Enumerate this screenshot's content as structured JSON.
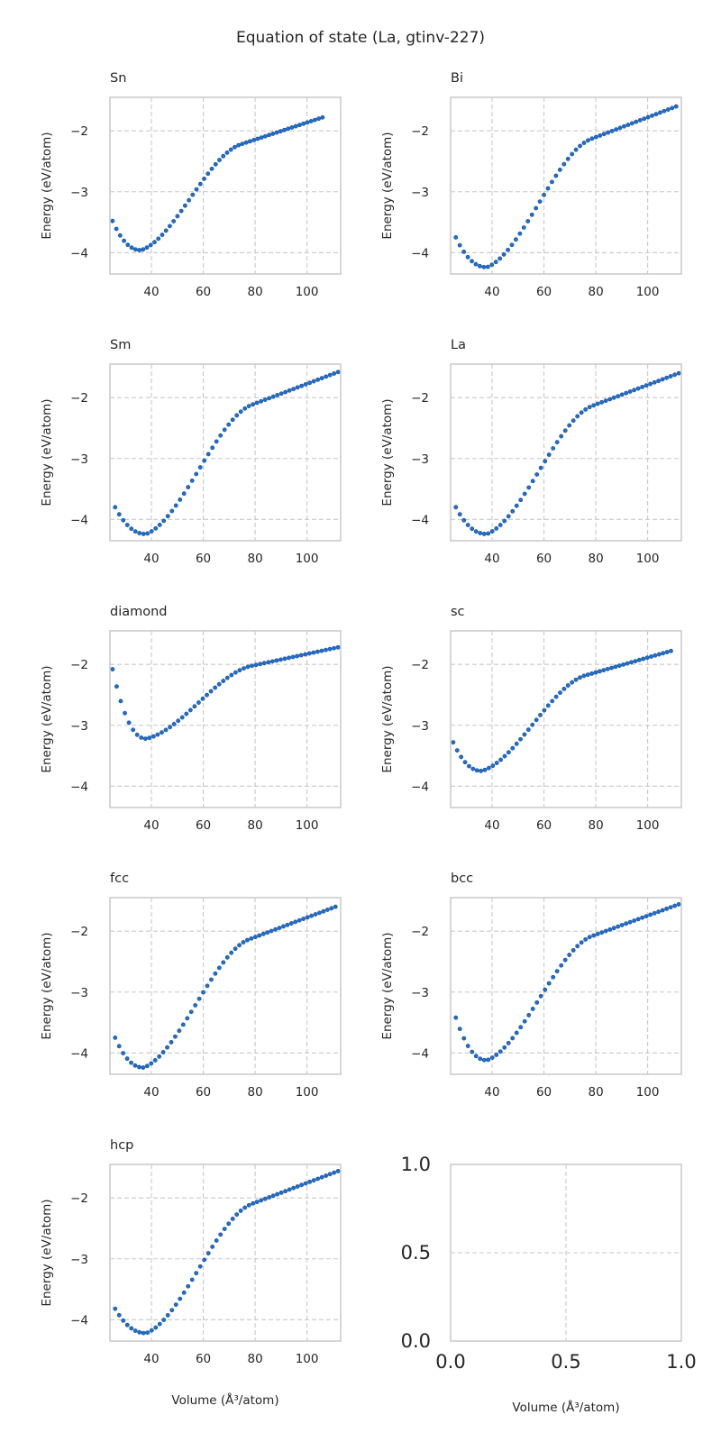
{
  "figure_title": "Equation of state (La, gtinv-227)",
  "ylabel": "Energy (eV/atom)",
  "xlabel": "Volume (Å³/atom)",
  "colors": {
    "marker": "#1f6fd1",
    "marker_edge": "#134a8e",
    "grid": "#c8c8c8",
    "spine": "#cccccc"
  },
  "chart_data": [
    {
      "type": "scatter",
      "title": "Sn",
      "xlabel": "",
      "ylabel": "Energy (eV/atom)",
      "xlim": [
        24,
        113
      ],
      "ylim": [
        -4.35,
        -1.45
      ],
      "xticks": [
        "40",
        "60",
        "80",
        "100"
      ],
      "yticks": [
        "−4",
        "−3",
        "−2"
      ],
      "grid": true,
      "curve": {
        "vmin": 25,
        "vmax": 106,
        "v0": 36,
        "emin": -3.96,
        "ehigh": -1.78,
        "estart": -3.48
      }
    },
    {
      "type": "scatter",
      "title": "Bi",
      "xlabel": "",
      "ylabel": "Energy (eV/atom)",
      "xlim": [
        24,
        113
      ],
      "ylim": [
        -4.35,
        -1.45
      ],
      "xticks": [
        "40",
        "60",
        "80",
        "100"
      ],
      "yticks": [
        "−4",
        "−3",
        "−2"
      ],
      "grid": true,
      "curve": {
        "vmin": 26,
        "vmax": 111,
        "v0": 38,
        "emin": -4.24,
        "ehigh": -1.6,
        "estart": -3.75
      }
    },
    {
      "type": "scatter",
      "title": "Sm",
      "xlabel": "",
      "ylabel": "Energy (eV/atom)",
      "xlim": [
        24,
        113
      ],
      "ylim": [
        -4.35,
        -1.45
      ],
      "xticks": [
        "40",
        "60",
        "80",
        "100"
      ],
      "yticks": [
        "−4",
        "−3",
        "−2"
      ],
      "grid": true,
      "curve": {
        "vmin": 26,
        "vmax": 112,
        "v0": 38,
        "emin": -4.24,
        "ehigh": -1.58,
        "estart": -3.8
      }
    },
    {
      "type": "scatter",
      "title": "La",
      "xlabel": "",
      "ylabel": "Energy (eV/atom)",
      "xlim": [
        24,
        113
      ],
      "ylim": [
        -4.35,
        -1.45
      ],
      "xticks": [
        "40",
        "60",
        "80",
        "100"
      ],
      "yticks": [
        "−4",
        "−3",
        "−2"
      ],
      "grid": true,
      "curve": {
        "vmin": 26,
        "vmax": 112,
        "v0": 38,
        "emin": -4.24,
        "ehigh": -1.6,
        "estart": -3.8
      }
    },
    {
      "type": "scatter",
      "title": "diamond",
      "xlabel": "",
      "ylabel": "Energy (eV/atom)",
      "xlim": [
        24,
        113
      ],
      "ylim": [
        -4.35,
        -1.45
      ],
      "xticks": [
        "40",
        "60",
        "80",
        "100"
      ],
      "yticks": [
        "−4",
        "−3",
        "−2"
      ],
      "grid": true,
      "curve": {
        "vmin": 25,
        "vmax": 112,
        "v0": 38,
        "emin": -3.22,
        "ehigh": -1.72,
        "estart": -2.08
      }
    },
    {
      "type": "scatter",
      "title": "sc",
      "xlabel": "",
      "ylabel": "Energy (eV/atom)",
      "xlim": [
        24,
        113
      ],
      "ylim": [
        -4.35,
        -1.45
      ],
      "xticks": [
        "40",
        "60",
        "80",
        "100"
      ],
      "yticks": [
        "−4",
        "−3",
        "−2"
      ],
      "grid": true,
      "curve": {
        "vmin": 25,
        "vmax": 109,
        "v0": 36,
        "emin": -3.75,
        "ehigh": -1.78,
        "estart": -3.28
      }
    },
    {
      "type": "scatter",
      "title": "fcc",
      "xlabel": "",
      "ylabel": "Energy (eV/atom)",
      "xlim": [
        24,
        113
      ],
      "ylim": [
        -4.35,
        -1.45
      ],
      "xticks": [
        "40",
        "60",
        "80",
        "100"
      ],
      "yticks": [
        "−4",
        "−3",
        "−2"
      ],
      "grid": true,
      "curve": {
        "vmin": 26,
        "vmax": 111,
        "v0": 37,
        "emin": -4.24,
        "ehigh": -1.6,
        "estart": -3.75
      }
    },
    {
      "type": "scatter",
      "title": "bcc",
      "xlabel": "",
      "ylabel": "Energy (eV/atom)",
      "xlim": [
        24,
        113
      ],
      "ylim": [
        -4.35,
        -1.45
      ],
      "xticks": [
        "40",
        "60",
        "80",
        "100"
      ],
      "yticks": [
        "−4",
        "−3",
        "−2"
      ],
      "grid": true,
      "curve": {
        "vmin": 26,
        "vmax": 112,
        "v0": 38,
        "emin": -4.12,
        "ehigh": -1.56,
        "estart": -3.42
      }
    },
    {
      "type": "scatter",
      "title": "hcp",
      "xlabel": "Volume (Å³/atom)",
      "ylabel": "Energy (eV/atom)",
      "xlim": [
        24,
        113
      ],
      "ylim": [
        -4.35,
        -1.45
      ],
      "xticks": [
        "40",
        "60",
        "80",
        "100"
      ],
      "yticks": [
        "−4",
        "−3",
        "−2"
      ],
      "grid": true,
      "curve": {
        "vmin": 26,
        "vmax": 112,
        "v0": 38,
        "emin": -4.22,
        "ehigh": -1.56,
        "estart": -3.82
      }
    },
    {
      "type": "scatter",
      "title": "",
      "xlabel": "Volume (Å³/atom)",
      "ylabel": "",
      "xlim": [
        0,
        1
      ],
      "ylim": [
        0,
        1
      ],
      "xticks": [
        "0.0",
        "0.5",
        "1.0"
      ],
      "yticks": [
        "0.0",
        "0.5",
        "1.0"
      ],
      "grid": true,
      "empty": true
    }
  ]
}
